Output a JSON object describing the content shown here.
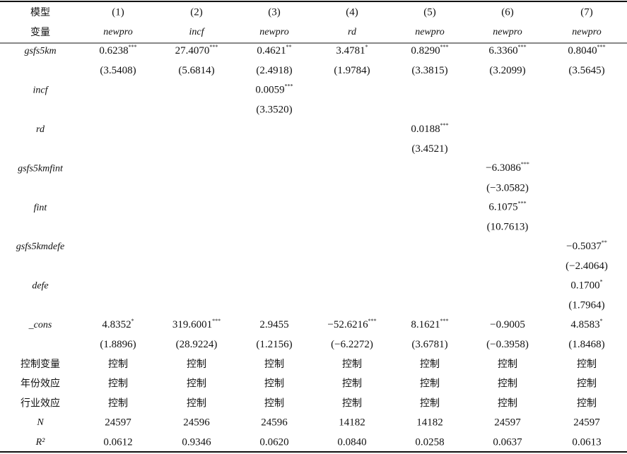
{
  "table": {
    "header": {
      "model_label": "模型",
      "variable_label": "变量",
      "columns": [
        "(1)",
        "(2)",
        "(3)",
        "(4)",
        "(5)",
        "(6)",
        "(7)"
      ],
      "dependent": [
        "newpro",
        "incf",
        "newpro",
        "rd",
        "newpro",
        "newpro",
        "newpro"
      ]
    },
    "rows": [
      {
        "label": "gsfs5km",
        "coef": [
          "0.6238",
          "27.4070",
          "0.4621",
          "3.4781",
          "0.8290",
          "6.3360",
          "0.8040"
        ],
        "stars": [
          "***",
          "***",
          "**",
          "*",
          "***",
          "***",
          "***"
        ],
        "t": [
          "(3.5408)",
          "(5.6814)",
          "(2.4918)",
          "(1.9784)",
          "(3.3815)",
          "(3.2099)",
          "(3.5645)"
        ]
      },
      {
        "label": "incf",
        "coef": [
          null,
          null,
          "0.0059",
          null,
          null,
          null,
          null
        ],
        "stars": [
          null,
          null,
          "***",
          null,
          null,
          null,
          null
        ],
        "t": [
          null,
          null,
          "(3.3520)",
          null,
          null,
          null,
          null
        ]
      },
      {
        "label": "rd",
        "coef": [
          null,
          null,
          null,
          null,
          "0.0188",
          null,
          null
        ],
        "stars": [
          null,
          null,
          null,
          null,
          "***",
          null,
          null
        ],
        "t": [
          null,
          null,
          null,
          null,
          "(3.4521)",
          null,
          null
        ]
      },
      {
        "label": "gsfs5kmfint",
        "coef": [
          null,
          null,
          null,
          null,
          null,
          "−6.3086",
          null
        ],
        "stars": [
          null,
          null,
          null,
          null,
          null,
          "***",
          null
        ],
        "t": [
          null,
          null,
          null,
          null,
          null,
          "(−3.0582)",
          null
        ]
      },
      {
        "label": "fint",
        "coef": [
          null,
          null,
          null,
          null,
          null,
          "6.1075",
          null
        ],
        "stars": [
          null,
          null,
          null,
          null,
          null,
          "***",
          null
        ],
        "t": [
          null,
          null,
          null,
          null,
          null,
          "(10.7613)",
          null
        ]
      },
      {
        "label": "gsfs5kmdefe",
        "coef": [
          null,
          null,
          null,
          null,
          null,
          null,
          "−0.5037"
        ],
        "stars": [
          null,
          null,
          null,
          null,
          null,
          null,
          "**"
        ],
        "t": [
          null,
          null,
          null,
          null,
          null,
          null,
          "(−2.4064)"
        ]
      },
      {
        "label": "defe",
        "coef": [
          null,
          null,
          null,
          null,
          null,
          null,
          "0.1700"
        ],
        "stars": [
          null,
          null,
          null,
          null,
          null,
          null,
          "*"
        ],
        "t": [
          null,
          null,
          null,
          null,
          null,
          null,
          "(1.7964)"
        ]
      },
      {
        "label": "_cons",
        "coef": [
          "4.8352",
          "319.6001",
          "2.9455",
          "−52.6216",
          "8.1621",
          "−0.9005",
          "4.8583"
        ],
        "stars": [
          "*",
          "***",
          null,
          "***",
          "***",
          null,
          "*"
        ],
        "t": [
          "(1.8896)",
          "(28.9224)",
          "(1.2156)",
          "(−6.2272)",
          "(3.6781)",
          "(−0.3958)",
          "(1.8468)"
        ]
      }
    ],
    "controls": [
      {
        "label": "控制变量",
        "values": [
          "控制",
          "控制",
          "控制",
          "控制",
          "控制",
          "控制",
          "控制"
        ]
      },
      {
        "label": "年份效应",
        "values": [
          "控制",
          "控制",
          "控制",
          "控制",
          "控制",
          "控制",
          "控制"
        ]
      },
      {
        "label": "行业效应",
        "values": [
          "控制",
          "控制",
          "控制",
          "控制",
          "控制",
          "控制",
          "控制"
        ]
      }
    ],
    "n": {
      "label": "N",
      "values": [
        "24597",
        "24596",
        "24596",
        "14182",
        "14182",
        "24597",
        "24597"
      ]
    },
    "r2": {
      "label": "R²",
      "values": [
        "0.0612",
        "0.9346",
        "0.0620",
        "0.0840",
        "0.0258",
        "0.0637",
        "0.0613"
      ]
    }
  }
}
